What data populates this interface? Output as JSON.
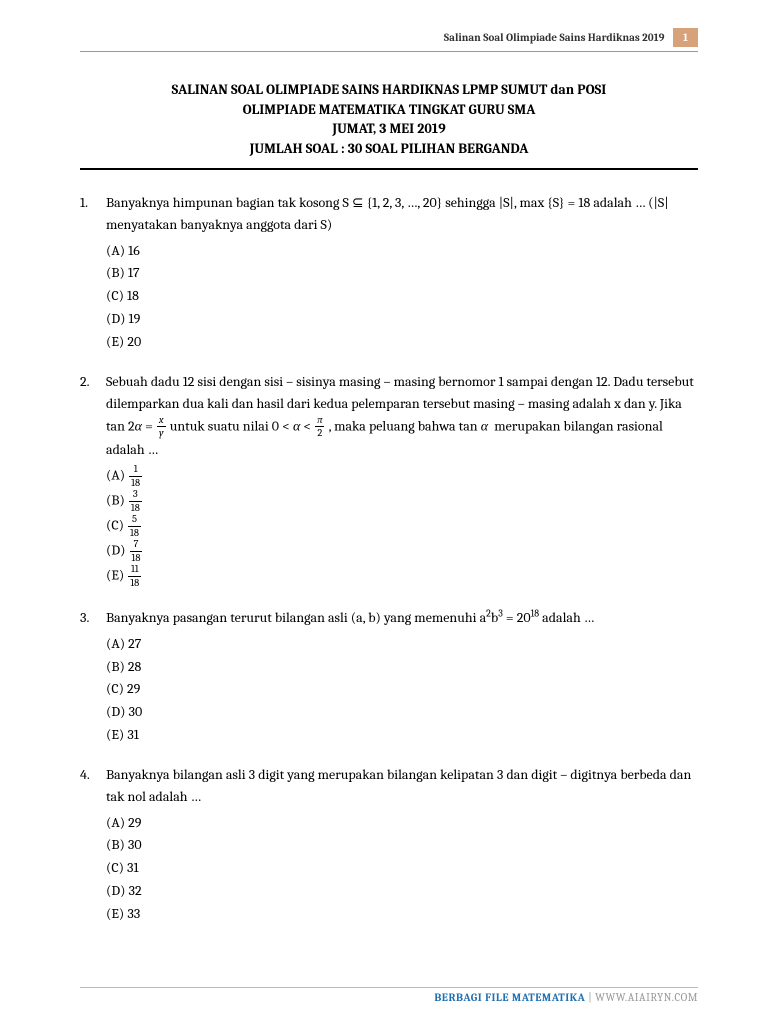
{
  "header": {
    "running_title": "Salinan Soal Olimpiade Sains Hardiknas 2019",
    "page_number": "1"
  },
  "title": {
    "line1": "SALINAN SOAL OLIMPIADE SAINS HARDIKNAS LPMP SUMUT dan POSI",
    "line2": "OLIMPIADE MATEMATIKA TINGKAT GURU SMA",
    "line3": "JUMAT, 3 MEI 2019",
    "line4": "JUMLAH SOAL : 30 SOAL PILIHAN BERGANDA"
  },
  "questions": [
    {
      "num": "1.",
      "text_html": "Banyaknya himpunan bagian tak kosong S ⊆ {1, 2, 3, …, 20} sehingga |S|, max {S} = 18 adalah … (|S| menyatakan banyaknya anggota dari S)",
      "opts": [
        "(A) 16",
        "(B) 17",
        "(C) 18",
        "(D) 19",
        "(E) 20"
      ]
    },
    {
      "num": "2.",
      "text_html": "Sebuah dadu 12 sisi dengan sisi – sisinya masing – masing bernomor 1 sampai dengan 12. Dadu tersebut dilemparkan dua kali dan hasil dari kedua pelemparan tersebut masing – masing adalah x dan y. Jika tan 2<i>α</i> = <span class=\"frac\"><span class=\"num\"><i>x</i></span><span class=\"den\"><i>y</i></span></span> untuk suatu nilai 0 &lt; <i>α</i> &lt; <span class=\"frac\"><span class=\"num\"><i>π</i></span><span class=\"den\">2</span></span> , maka peluang bahwa tan <i>α</i>&nbsp; merupakan bilangan rasional adalah …",
      "opts_html": [
        "(A) <span class=\"frac\"><span class=\"num\">1</span><span class=\"den\">18</span></span>",
        "(B) <span class=\"frac\"><span class=\"num\">3</span><span class=\"den\">18</span></span>",
        "(C) <span class=\"frac\"><span class=\"num\">5</span><span class=\"den\">18</span></span>",
        "(D) <span class=\"frac\"><span class=\"num\">7</span><span class=\"den\">18</span></span>",
        "(E) <span class=\"frac\"><span class=\"num\">11</span><span class=\"den\">18</span></span>"
      ]
    },
    {
      "num": "3.",
      "text_html": "Banyaknya pasangan terurut bilangan asli (a, b) yang memenuhi a<sup>2</sup>b<sup>3</sup> = 20<sup>18</sup> adalah …",
      "opts": [
        "(A) 27",
        "(B) 28",
        "(C) 29",
        "(D) 30",
        "(E) 31"
      ]
    },
    {
      "num": "4.",
      "text_html": "Banyaknya bilangan asli 3 digit yang merupakan bilangan kelipatan 3 dan digit – digitnya berbeda dan tak nol adalah …",
      "opts": [
        "(A) 29",
        "(B) 30",
        "(C) 31",
        "(D) 32",
        "(E) 33"
      ]
    }
  ],
  "footer": {
    "label": "BERBAGI FILE MATEMATIKA",
    "sep": " | ",
    "url": "WWW.AIAIRYN.COM"
  }
}
